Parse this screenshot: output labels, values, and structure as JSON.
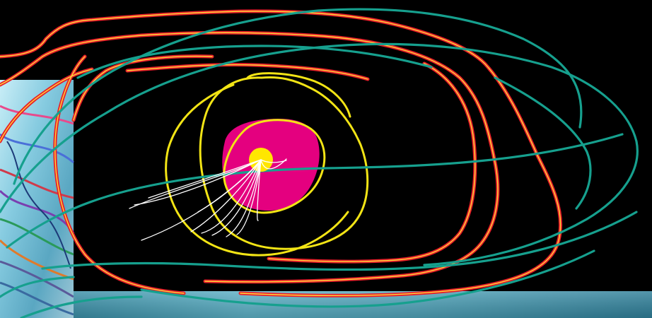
{
  "artwork": {
    "colors": {
      "background": "#000000",
      "magenta_blob": "#e4007f",
      "sun_disc": "#ffe600",
      "yellow_scribble": "#f2e415",
      "red_stroke": "#e8202a",
      "red_core": "#ffd83a",
      "teal_stroke": "#16a08e",
      "white_rays": "#ffffff",
      "left_panel_sky": "#9fd6e6",
      "bottom_panel": "#3c9ab0"
    },
    "elements": [
      "collage-panel-left",
      "collage-panel-bottom",
      "magenta-blob",
      "sun-disc",
      "yellow-scribble",
      "red-loops",
      "teal-loops",
      "white-rays"
    ]
  }
}
